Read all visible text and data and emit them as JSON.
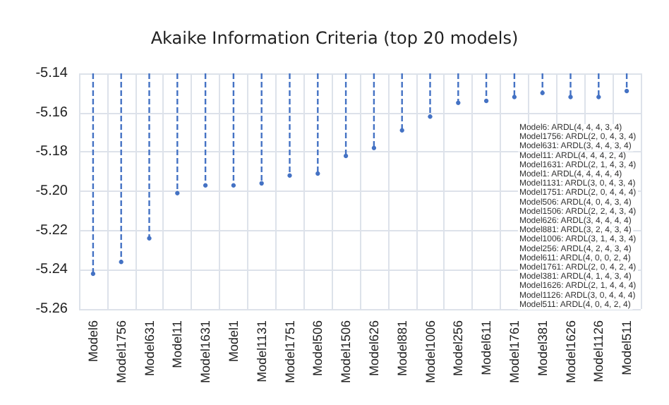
{
  "chart_data": {
    "type": "lollipop",
    "title": "Akaike Information Criteria (top 20 models)",
    "categories": [
      "Model6",
      "Model1756",
      "Model631",
      "Model11",
      "Model1631",
      "Model1",
      "Model1131",
      "Model1751",
      "Model506",
      "Model1506",
      "Model626",
      "Model881",
      "Model1006",
      "Model256",
      "Model611",
      "Model1761",
      "Model381",
      "Model1626",
      "Model1126",
      "Model511"
    ],
    "values": [
      -5.242,
      -5.236,
      -5.224,
      -5.201,
      -5.197,
      -5.197,
      -5.196,
      -5.192,
      -5.191,
      -5.182,
      -5.178,
      -5.169,
      -5.162,
      -5.155,
      -5.154,
      -5.152,
      -5.15,
      -5.152,
      -5.152,
      -5.149
    ],
    "color": "#4472c4",
    "ylim": [
      -5.26,
      -5.14
    ],
    "yticks": [
      -5.26,
      -5.24,
      -5.22,
      {
        "value": -5.2,
        "label": "-5.20"
      },
      -5.18,
      -5.16,
      -5.14
    ],
    "grid": true,
    "marker": "circle",
    "line_style": "dashed",
    "annotations": [
      "Model6: ARDL(4, 4, 4, 3, 4)",
      "Model1756: ARDL(2, 0, 4, 3, 4)",
      "Model631: ARDL(3, 4, 4, 3, 4)",
      "Model11: ARDL(4, 4, 4, 2, 4)",
      "Model1631: ARDL(2, 1, 4, 3, 4)",
      "Model1: ARDL(4, 4, 4, 4, 4)",
      "Model1131: ARDL(3, 0, 4, 3, 4)",
      "Model1751: ARDL(2, 0, 4, 4, 4)",
      "Model506: ARDL(4, 0, 4, 3, 4)",
      "Model1506: ARDL(2, 2, 4, 3, 4)",
      "Model626: ARDL(3, 4, 4, 4, 4)",
      "Model881: ARDL(3, 2, 4, 3, 4)",
      "Model1006: ARDL(3, 1, 4, 3, 4)",
      "Model256: ARDL(4, 2, 4, 3, 4)",
      "Model611: ARDL(4, 0, 0, 2, 4)",
      "Model1761: ARDL(2, 0, 4, 2, 4)",
      "Model381: ARDL(4, 1, 4, 3, 4)",
      "Model1626: ARDL(2, 1, 4, 4, 4)",
      "Model1126: ARDL(3, 0, 4, 4, 4)",
      "Model511: ARDL(4, 0, 4, 2, 4)"
    ]
  }
}
